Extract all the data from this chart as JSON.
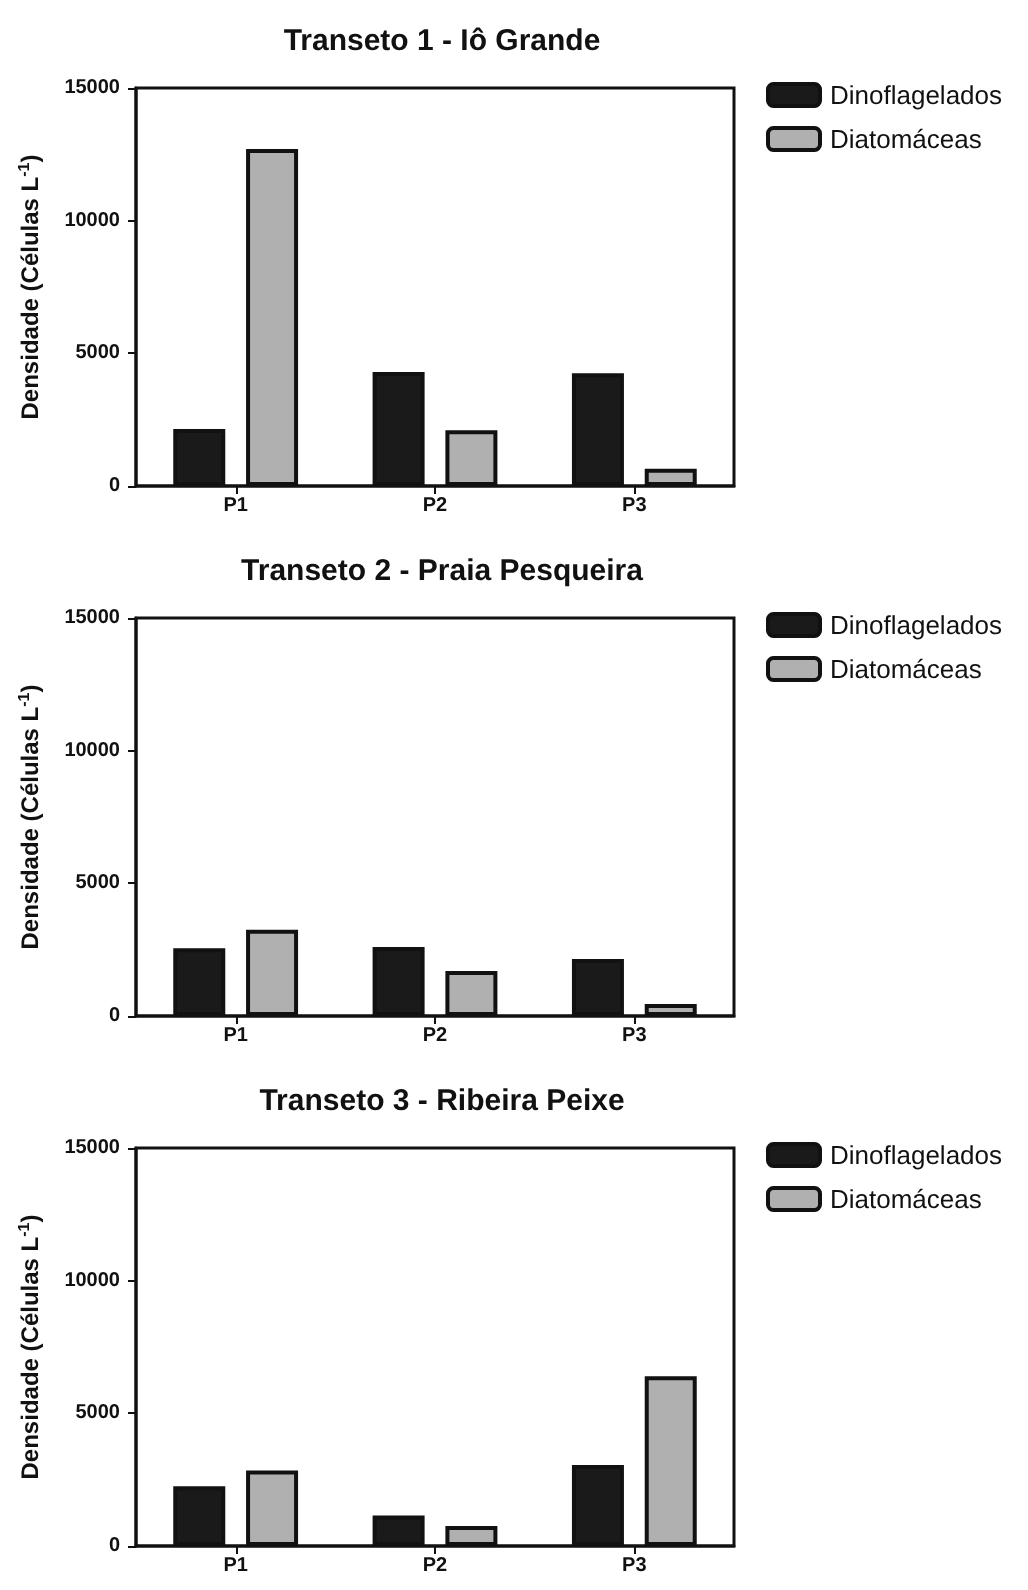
{
  "chart_data": [
    {
      "type": "bar",
      "title": "Transeto 1 - Iô Grande",
      "ylabel": "Densidade (Células L$^{-1}$)",
      "categories": [
        "P1",
        "P2",
        "P3"
      ],
      "series": [
        {
          "name": "Dinoflagelados",
          "color": "#1a1a1a",
          "values": [
            2150,
            4300,
            4250
          ]
        },
        {
          "name": "Diatomáceas",
          "color": "#b0b0b0",
          "values": [
            12700,
            2100,
            650
          ]
        }
      ],
      "ylim": [
        0,
        15000
      ],
      "yticks": [
        0,
        5000,
        10000,
        15000
      ],
      "legend": "top right"
    },
    {
      "type": "bar",
      "title": "Transeto 2 - Praia Pesqueira",
      "ylabel": "Densidade (Células L$^{-1}$)",
      "categories": [
        "P1",
        "P2",
        "P3"
      ],
      "series": [
        {
          "name": "Dinoflagelados",
          "color": "#1a1a1a",
          "values": [
            2550,
            2600,
            2150
          ]
        },
        {
          "name": "Diatomáceas",
          "color": "#b0b0b0",
          "values": [
            3250,
            1700,
            450
          ]
        }
      ],
      "ylim": [
        0,
        15000
      ],
      "yticks": [
        0,
        5000,
        10000,
        15000
      ],
      "legend": "top right"
    },
    {
      "type": "bar",
      "title": "Transeto 3 - Ribeira Peixe",
      "ylabel": "Densidade (Células L$^{-1}$)",
      "categories": [
        "P1",
        "P2",
        "P3"
      ],
      "series": [
        {
          "name": "Dinoflagelados",
          "color": "#1a1a1a",
          "values": [
            2250,
            1150,
            3050
          ]
        },
        {
          "name": "Diatomáceas",
          "color": "#b0b0b0",
          "values": [
            2850,
            750,
            6400
          ]
        }
      ],
      "ylim": [
        0,
        15000
      ],
      "yticks": [
        0,
        5000,
        10000,
        15000
      ],
      "legend": "top right"
    }
  ]
}
